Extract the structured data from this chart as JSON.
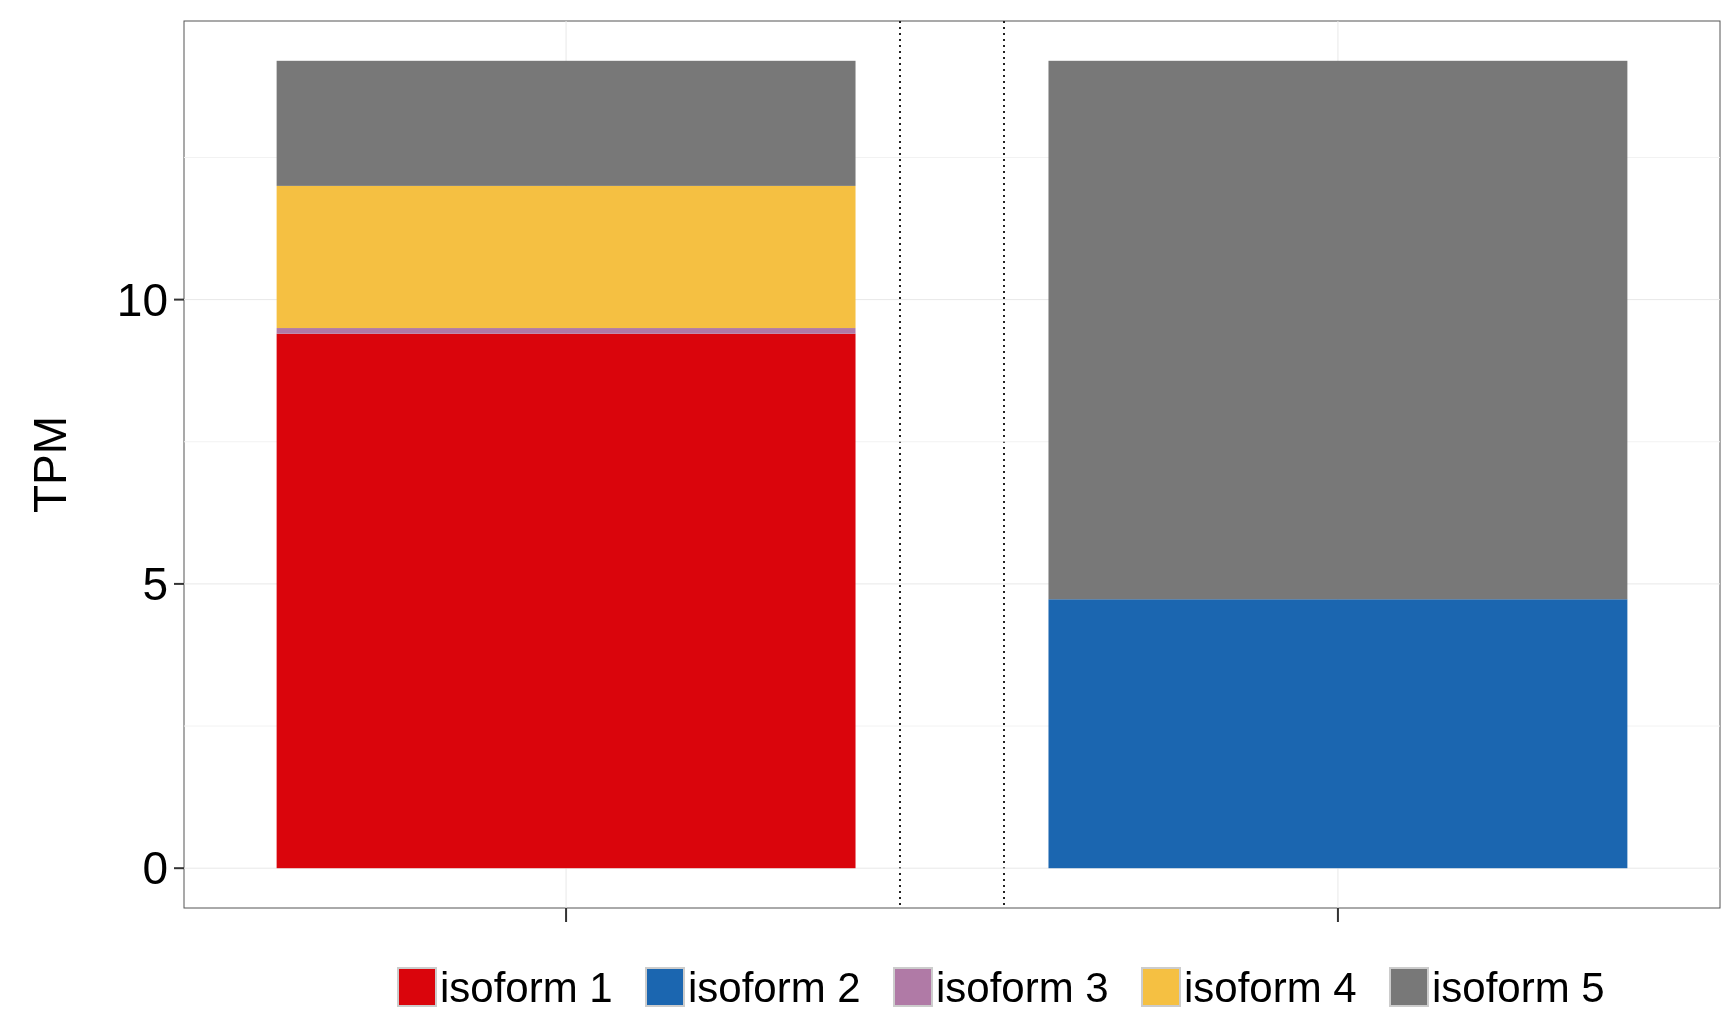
{
  "chart_data": {
    "type": "bar",
    "stacked": true,
    "ylabel": "TPM",
    "categories": [
      null,
      null
    ],
    "ylim": [
      -0.7,
      14.9
    ],
    "yticks": [
      0,
      5,
      10
    ],
    "grid": true,
    "legend": "bottom",
    "series": [
      {
        "name": "isoform 1",
        "color": "#da050c",
        "values": [
          9.4,
          null
        ]
      },
      {
        "name": "isoform 2",
        "color": "#1b66b0",
        "values": [
          null,
          4.73
        ]
      },
      {
        "name": "isoform 3",
        "color": "#b07aa6",
        "values": [
          0.1,
          null
        ]
      },
      {
        "name": "isoform 4",
        "color": "#f5c042",
        "values": [
          2.5,
          null
        ]
      },
      {
        "name": "isoform 5",
        "color": "#787878",
        "values": [
          2.2,
          9.47
        ]
      }
    ]
  }
}
